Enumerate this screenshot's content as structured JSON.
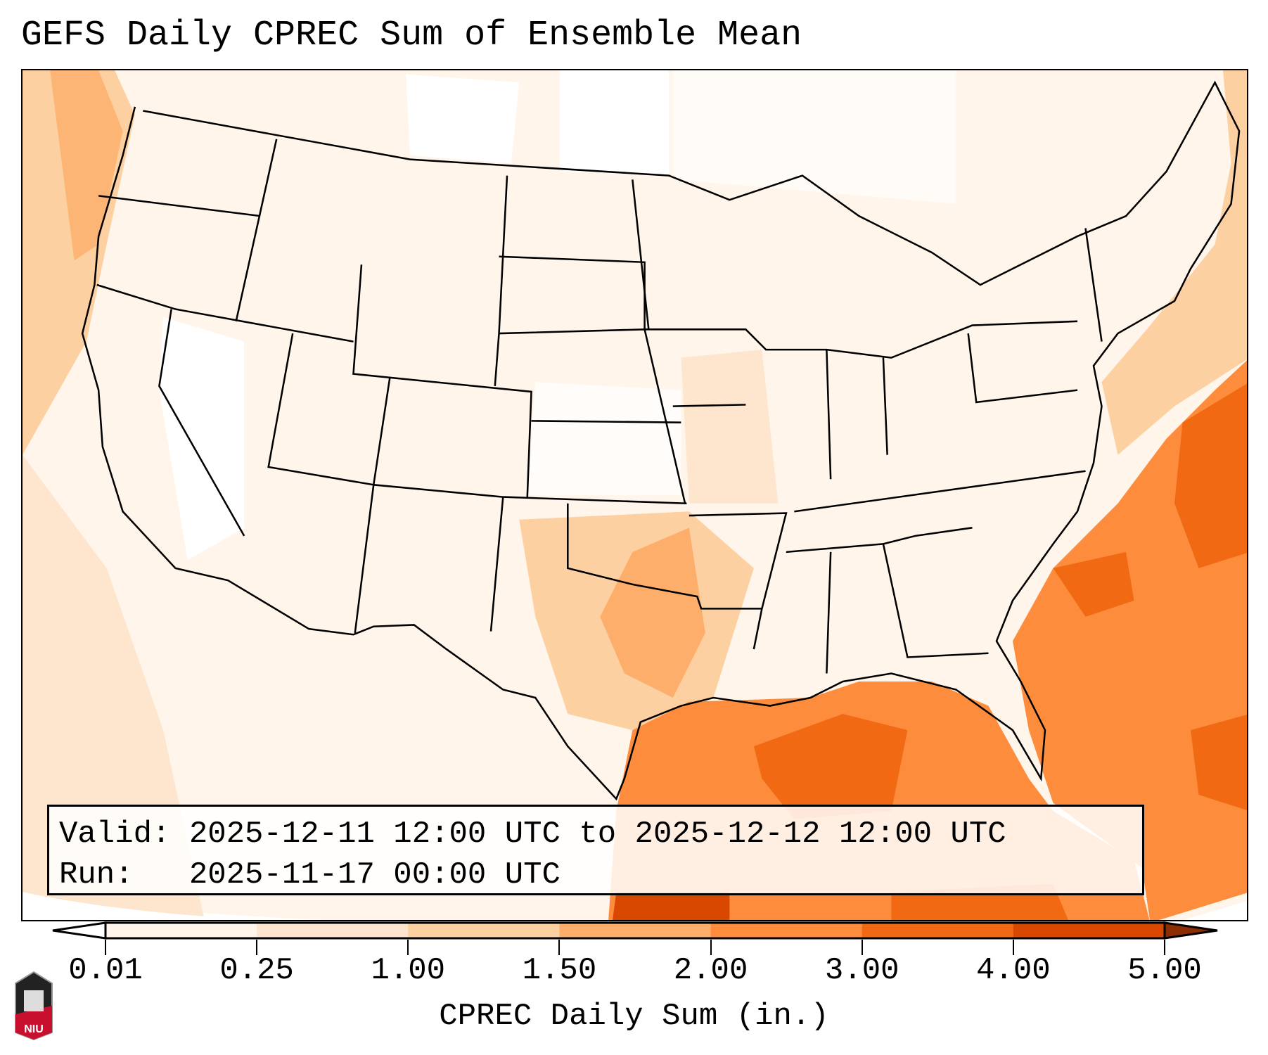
{
  "title": "GEFS Daily CPREC Sum of Ensemble Mean",
  "legend": {
    "valid_label": "Valid:",
    "valid_value": "2025-12-11 12:00 UTC to 2025-12-12 12:00 UTC",
    "run_label": "Run:",
    "run_value": "2025-11-17 00:00 UTC"
  },
  "colorbar": {
    "label": "CPREC Daily Sum (in.)",
    "ticks": [
      "0.01",
      "0.25",
      "1.00",
      "1.50",
      "2.00",
      "3.00",
      "4.00",
      "5.00"
    ],
    "colors": [
      "#fff5eb",
      "#fee6ce",
      "#fdd0a2",
      "#fdae6b",
      "#fd8d3c",
      "#f16913",
      "#d94801"
    ],
    "under_color": "#ffffff",
    "over_color": "#8c2d04"
  },
  "logo": {
    "text": "NIU"
  }
}
